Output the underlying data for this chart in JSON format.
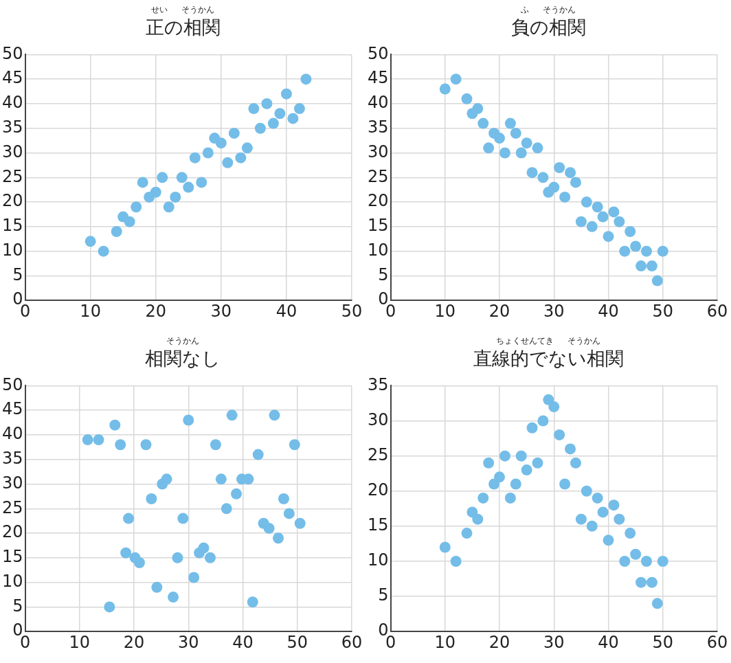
{
  "chart_data": [
    {
      "type": "scatter",
      "title": "正の相関",
      "subtitle": "せい　  そうかん",
      "color": "#74bde8",
      "marker": "circle",
      "grid": true,
      "x": [
        10,
        12,
        14,
        15,
        16,
        17,
        18,
        19,
        20,
        21,
        22,
        23,
        24,
        25,
        26,
        27,
        28,
        29,
        30,
        31,
        32,
        33,
        34,
        35,
        36,
        37,
        38,
        39,
        40,
        41,
        42,
        43
      ],
      "values": [
        12,
        10,
        14,
        17,
        16,
        19,
        24,
        21,
        22,
        25,
        19,
        21,
        25,
        23,
        29,
        24,
        30,
        33,
        32,
        28,
        34,
        29,
        31,
        39,
        35,
        40,
        36,
        38,
        42,
        37,
        39,
        45
      ],
      "xlim": [
        0,
        50
      ],
      "xticks": [
        0,
        10,
        20,
        30,
        40,
        50
      ],
      "ylim": [
        0,
        50
      ],
      "yticks": [
        0,
        5,
        10,
        15,
        20,
        25,
        30,
        35,
        40,
        45,
        50
      ]
    },
    {
      "type": "scatter",
      "title": "負の相関",
      "subtitle": "ふ　  そうかん",
      "color": "#74bde8",
      "marker": "circle",
      "grid": true,
      "x": [
        10,
        12,
        14,
        15,
        16,
        17,
        18,
        19,
        20,
        21,
        22,
        23,
        24,
        25,
        26,
        27,
        28,
        29,
        30,
        31,
        32,
        33,
        34,
        35,
        36,
        37,
        38,
        39,
        40,
        41,
        42,
        43,
        44,
        45,
        46,
        47,
        48,
        49,
        50
      ],
      "values": [
        43,
        45,
        41,
        38,
        39,
        36,
        31,
        34,
        33,
        30,
        36,
        34,
        30,
        32,
        26,
        31,
        25,
        22,
        23,
        27,
        21,
        26,
        24,
        16,
        20,
        15,
        19,
        17,
        13,
        18,
        16,
        10,
        14,
        11,
        7,
        10,
        7,
        4,
        10
      ],
      "xlim": [
        0,
        60
      ],
      "xticks": [
        0,
        10,
        20,
        30,
        40,
        50,
        60
      ],
      "ylim": [
        0,
        50
      ],
      "yticks": [
        0,
        5,
        10,
        15,
        20,
        25,
        30,
        35,
        40,
        45,
        50
      ]
    },
    {
      "type": "scatter",
      "title": "相関なし",
      "subtitle": "そうかん",
      "color": "#74bde8",
      "marker": "circle",
      "grid": true,
      "x": [
        11.5,
        13.5,
        16.5,
        17.5,
        22.2,
        19,
        18.5,
        20.2,
        21,
        15.5,
        23.2,
        25.2,
        26,
        24.2,
        27.2,
        28,
        29,
        30,
        31,
        32,
        32.8,
        34,
        35,
        36,
        37,
        38,
        38.8,
        39.8,
        41,
        41.8,
        42.8,
        43.8,
        44.8,
        45.8,
        46.5,
        47.5,
        48.5,
        49.5,
        50.5
      ],
      "values": [
        39,
        39,
        42,
        38,
        38,
        23,
        16,
        15,
        14,
        5,
        27,
        30,
        31,
        9,
        7,
        15,
        23,
        43,
        11,
        16,
        17,
        15,
        38,
        31,
        25,
        44,
        28,
        31,
        31,
        6,
        36,
        22,
        21,
        44,
        19,
        27,
        24,
        38,
        22
      ],
      "xlim": [
        0,
        60
      ],
      "xticks": [
        0,
        10,
        20,
        30,
        40,
        50,
        60
      ],
      "ylim": [
        0,
        50
      ],
      "yticks": [
        0,
        5,
        10,
        15,
        20,
        25,
        30,
        35,
        40,
        45,
        50
      ]
    },
    {
      "type": "scatter",
      "title": "直線的でない相関",
      "subtitle": "ちょくせんてき　  そうかん",
      "color": "#74bde8",
      "marker": "circle",
      "grid": true,
      "x": [
        10,
        12,
        14,
        15,
        16,
        17,
        18,
        19,
        20,
        21,
        22,
        23,
        24,
        25,
        26,
        27,
        28,
        29,
        30,
        31,
        32,
        33,
        34,
        35,
        36,
        37,
        38,
        39,
        40,
        41,
        42,
        43,
        44,
        45,
        46,
        47,
        48,
        49,
        50
      ],
      "values": [
        12,
        10,
        14,
        17,
        16,
        19,
        24,
        21,
        22,
        25,
        19,
        21,
        25,
        23,
        29,
        24,
        30,
        33,
        32,
        28,
        21,
        26,
        24,
        16,
        20,
        15,
        19,
        17,
        13,
        18,
        16,
        10,
        14,
        11,
        7,
        10,
        7,
        4,
        10
      ],
      "xlim": [
        0,
        60
      ],
      "xticks": [
        0,
        10,
        20,
        30,
        40,
        50,
        60
      ],
      "ylim": [
        0,
        35
      ],
      "yticks": [
        0,
        5,
        10,
        15,
        20,
        25,
        30,
        35
      ]
    }
  ]
}
